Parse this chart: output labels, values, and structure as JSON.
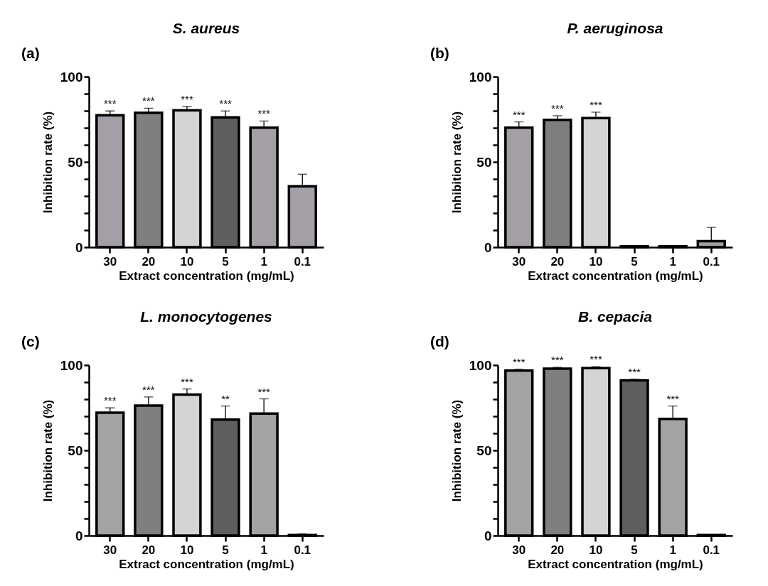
{
  "chart_data": [
    {
      "type": "bar",
      "title": "S. aureus",
      "xlabel": "Extract concentration (mg/mL)",
      "ylabel": "Inhibition rate (%)",
      "categories": [
        "30",
        "20",
        "10",
        "5",
        "1",
        "0.1"
      ],
      "values": [
        77.4,
        78.9,
        80.3,
        76.1,
        70.1,
        35.7
      ],
      "colors": [
        "#a49fa6",
        "#7f7f7f",
        "#d4d4d4",
        "#5f5f5f",
        "#a49fa6",
        "#a49fa6"
      ],
      "errors": [
        [
          77.4,
          79.9
        ],
        [
          78.9,
          81.5
        ],
        [
          80.3,
          82.6
        ],
        [
          76.1,
          79.9
        ],
        [
          70.1,
          74.0
        ],
        [
          35.7,
          42.8
        ]
      ],
      "ylim": [
        0,
        100
      ],
      "yticks": [
        0,
        {
          "value": 10,
          "label": null
        },
        {
          "value": 20,
          "label": null
        },
        {
          "value": 30,
          "label": null
        },
        {
          "value": 40,
          "label": null
        },
        50,
        {
          "value": 60,
          "label": null
        },
        {
          "value": 70,
          "label": null
        },
        {
          "value": 80,
          "label": null
        },
        {
          "value": 90,
          "label": null
        },
        100
      ],
      "annotations": [
        "(a)",
        {
          "text": "***",
          "x": "30",
          "y": 79.9
        },
        {
          "text": "***",
          "x": "20",
          "y": 81.5
        },
        {
          "text": "***",
          "x": "10",
          "y": 82.6
        },
        {
          "text": "***",
          "x": "5",
          "y": 79.9
        },
        {
          "text": "***",
          "x": "1",
          "y": 74.0
        }
      ]
    },
    {
      "type": "bar",
      "title": "P. aeruginosa",
      "xlabel": "Extract concentration (mg/mL)",
      "ylabel": "Inhibition rate (%)",
      "categories": [
        "30",
        "20",
        "10",
        "5",
        "1",
        "0.1"
      ],
      "values": [
        70.1,
        74.7,
        75.7,
        0.5,
        0.5,
        3.5
      ],
      "colors": [
        "#a49fa6",
        "#7f7f7f",
        "#d4d4d4",
        "#5f5f5f",
        "#a49fa6",
        "#a0a0a0"
      ],
      "errors": [
        [
          70.1,
          73.5
        ],
        [
          74.7,
          77.1
        ],
        [
          75.7,
          79.2
        ],
        null,
        null,
        [
          3.5,
          11.6
        ]
      ],
      "ylim": [
        0,
        100
      ],
      "yticks": [
        0,
        {
          "value": 10,
          "label": null
        },
        {
          "value": 20,
          "label": null
        },
        {
          "value": 30,
          "label": null
        },
        {
          "value": 40,
          "label": null
        },
        50,
        {
          "value": 60,
          "label": null
        },
        {
          "value": 70,
          "label": null
        },
        {
          "value": 80,
          "label": null
        },
        {
          "value": 90,
          "label": null
        },
        100
      ],
      "annotations": [
        "(b)",
        {
          "text": "***",
          "x": "30",
          "y": 73.5
        },
        {
          "text": "***",
          "x": "20",
          "y": 77.1
        },
        {
          "text": "***",
          "x": "10",
          "y": 79.2
        }
      ]
    },
    {
      "type": "bar",
      "title": "L. monocytogenes",
      "xlabel": "Extract concentration (mg/mL)",
      "ylabel": "Inhibition rate (%)",
      "categories": [
        "30",
        "20",
        "10",
        "5",
        "1",
        "0.1"
      ],
      "values": [
        72.1,
        76.3,
        82.7,
        68.0,
        71.6,
        0.3
      ],
      "colors": [
        "#a3a3a3",
        "#7f7f7f",
        "#d4d4d4",
        "#5f5f5f",
        "#a3a3a3",
        "#a3a3a3"
      ],
      "errors": [
        [
          72.1,
          74.9
        ],
        [
          76.3,
          81.3
        ],
        [
          82.7,
          86.0
        ],
        [
          68.0,
          76.0
        ],
        [
          71.6,
          80.2
        ],
        [
          0.3,
          1.0
        ]
      ],
      "ylim": [
        0,
        100
      ],
      "yticks": [
        0,
        {
          "value": 10,
          "label": null
        },
        {
          "value": 20,
          "label": null
        },
        {
          "value": 30,
          "label": null
        },
        {
          "value": 40,
          "label": null
        },
        50,
        {
          "value": 60,
          "label": null
        },
        {
          "value": 70,
          "label": null
        },
        {
          "value": 80,
          "label": null
        },
        {
          "value": 90,
          "label": null
        },
        100
      ],
      "annotations": [
        "(c)",
        {
          "text": "***",
          "x": "30",
          "y": 74.9
        },
        {
          "text": "***",
          "x": "20",
          "y": 81.3
        },
        {
          "text": "***",
          "x": "10",
          "y": 86.0
        },
        {
          "text": "**",
          "x": "5",
          "y": 76.0
        },
        {
          "text": "***",
          "x": "1",
          "y": 80.2
        }
      ]
    },
    {
      "type": "bar",
      "title": "B. cepacia",
      "xlabel": "Extract concentration (mg/mL)",
      "ylabel": "Inhibition rate (%)",
      "categories": [
        "30",
        "20",
        "10",
        "5",
        "1",
        "0.1"
      ],
      "values": [
        96.8,
        97.9,
        98.2,
        91.0,
        68.4,
        0.3
      ],
      "colors": [
        "#a3a3a3",
        "#7f7f7f",
        "#d4d4d4",
        "#5f5f5f",
        "#a3a3a3",
        "#a3a3a3"
      ],
      "errors": [
        [
          96.8,
          97.5
        ],
        [
          97.9,
          98.7
        ],
        [
          98.2,
          99.1
        ],
        [
          91.0,
          91.7
        ],
        [
          68.4,
          76.0
        ],
        null
      ],
      "ylim": [
        0,
        100
      ],
      "yticks": [
        0,
        {
          "value": 10,
          "label": null
        },
        {
          "value": 20,
          "label": null
        },
        {
          "value": 30,
          "label": null
        },
        {
          "value": 40,
          "label": null
        },
        50,
        {
          "value": 60,
          "label": null
        },
        {
          "value": 70,
          "label": null
        },
        {
          "value": 80,
          "label": null
        },
        {
          "value": 90,
          "label": null
        },
        100
      ],
      "annotations": [
        "(d)",
        {
          "text": "***",
          "x": "30",
          "y": 97.5
        },
        {
          "text": "***",
          "x": "20",
          "y": 98.7
        },
        {
          "text": "***",
          "x": "10",
          "y": 99.1
        },
        {
          "text": "***",
          "x": "5",
          "y": 91.7
        },
        {
          "text": "***",
          "x": "1",
          "y": 76.0
        }
      ]
    }
  ]
}
